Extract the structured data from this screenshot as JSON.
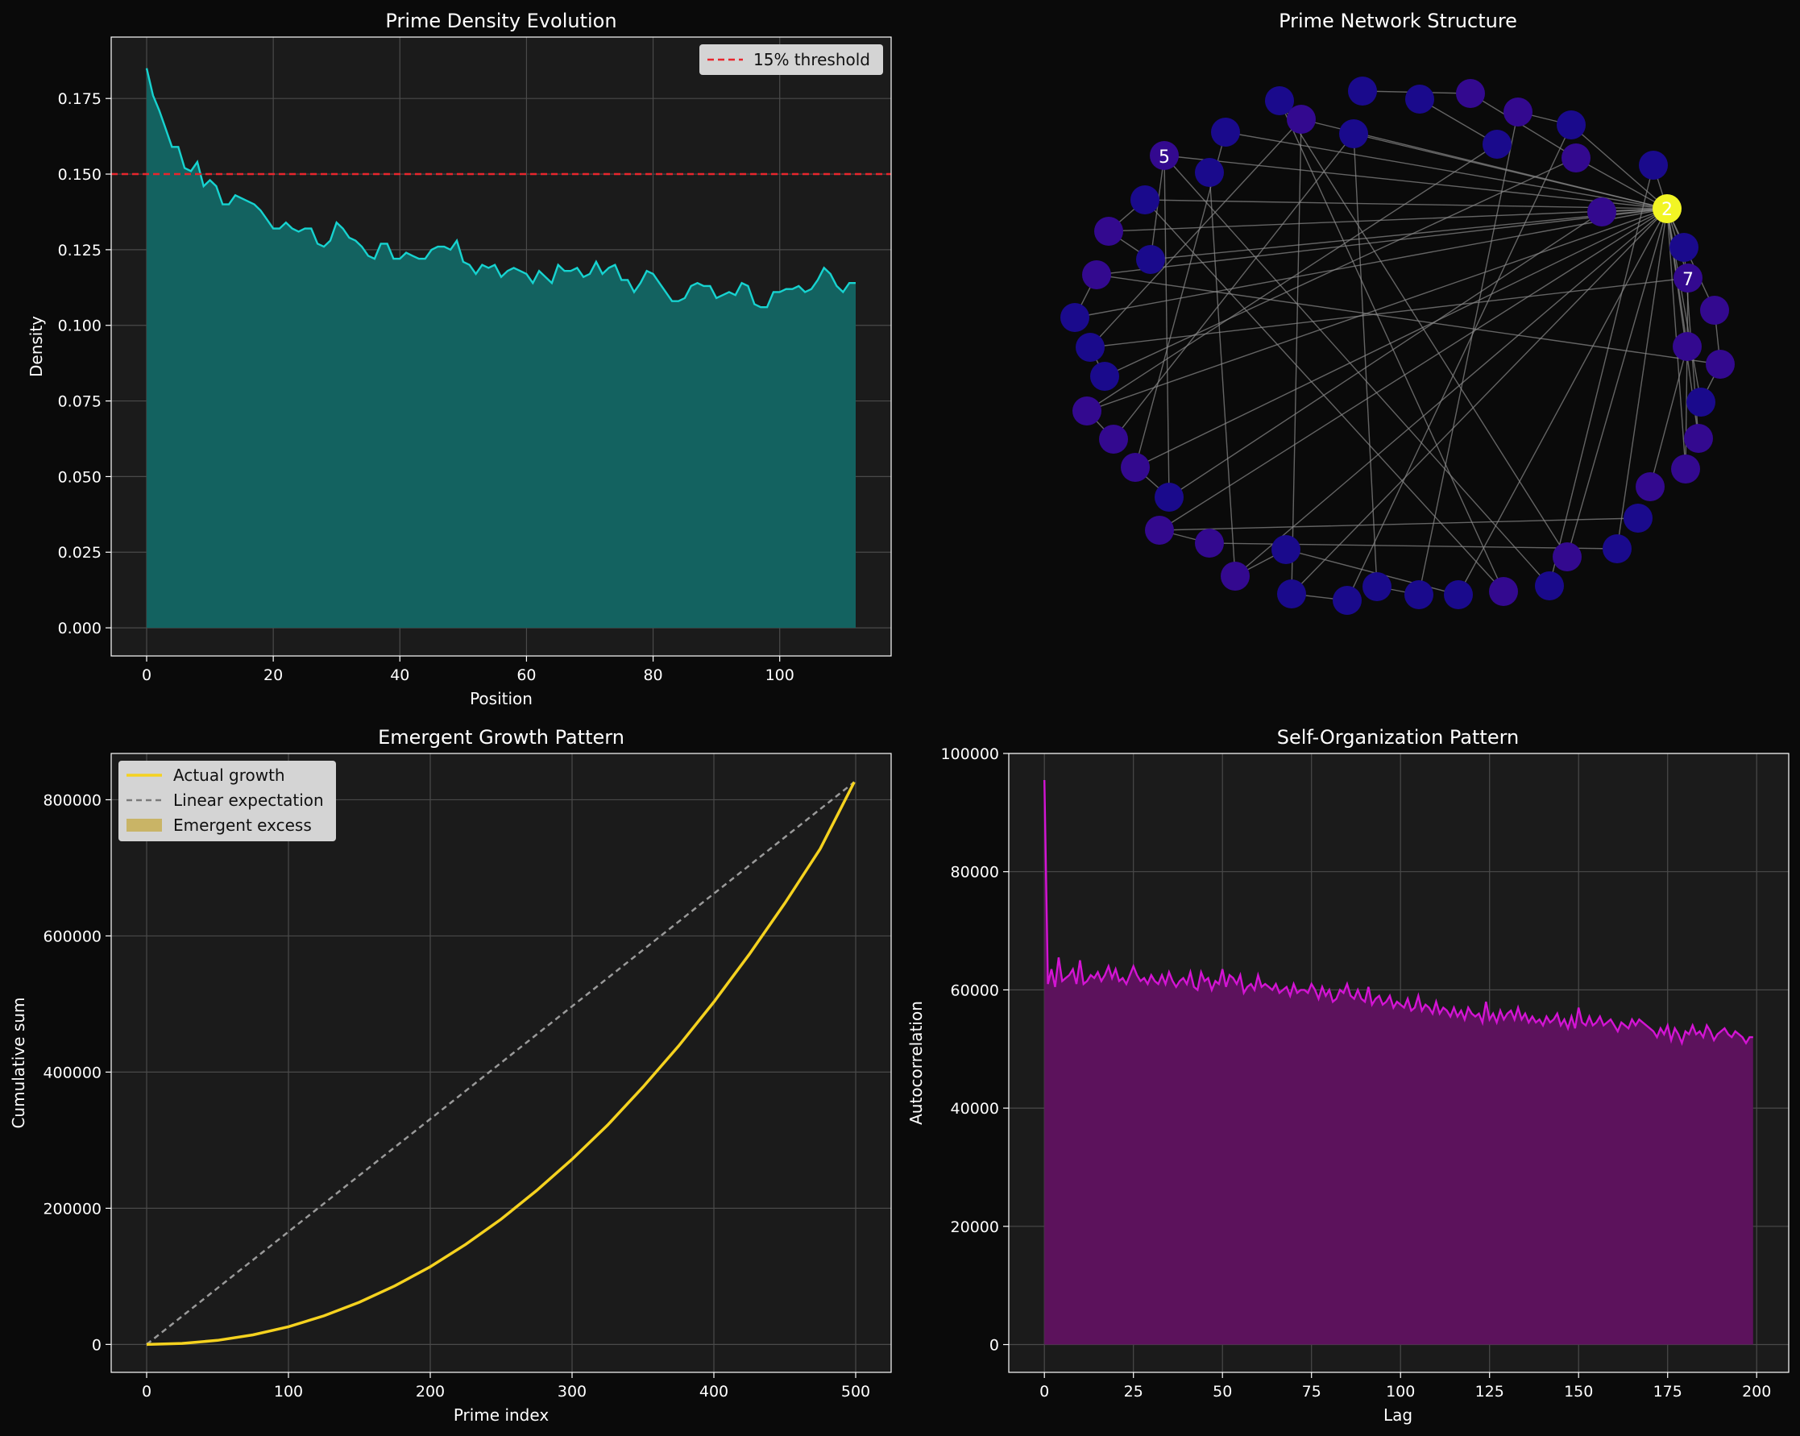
{
  "colors": {
    "figure_bg": "#0a0a0a",
    "axes_bg": "#1b1b1b",
    "text": "#ffffff",
    "grid": "#4a4a4a",
    "cyan": "#17d3d0",
    "cyan_fill": "#136260",
    "red": "#e8262d",
    "gold": "#f5d21f",
    "gold_fill": "#c9b466",
    "grey_line": "#9a9a9a",
    "magenta": "#d314d3",
    "magenta_fill": "#5c125c",
    "legend_bg": "#d4d4d4",
    "legend_text": "#111111",
    "node_blue": "#1a0a8c",
    "node_violet": "#33098f",
    "node_highlight": "#f2f524",
    "edge": "#8a8a8a"
  },
  "chart_data": [
    {
      "type": "area",
      "title": "Prime Density Evolution",
      "xlabel": "Position",
      "ylabel": "Density",
      "xlim": [
        -5.6,
        117.6
      ],
      "ylim": [
        -0.0093,
        0.1953
      ],
      "xticks": [
        0,
        20,
        40,
        60,
        80,
        100
      ],
      "yticks": [
        0.0,
        0.025,
        0.05,
        0.075,
        0.1,
        0.125,
        0.15,
        0.175
      ],
      "ytick_labels": [
        "0.000",
        "0.025",
        "0.050",
        "0.075",
        "0.100",
        "0.125",
        "0.150",
        "0.175"
      ],
      "grid": true,
      "legend": {
        "position": "top-right",
        "entries": [
          "15% threshold"
        ]
      },
      "threshold": 0.15,
      "series": [
        {
          "x": [
            0,
            1,
            2,
            3,
            4,
            5,
            6,
            7,
            8,
            9,
            10,
            11,
            12,
            13,
            14,
            15,
            16,
            17,
            18,
            19,
            20,
            21,
            22,
            23,
            24,
            25,
            26,
            27,
            28,
            29,
            30,
            31,
            32,
            33,
            34,
            35,
            36,
            37,
            38,
            39,
            40,
            41,
            42,
            43,
            44,
            45,
            46,
            47,
            48,
            49,
            50,
            51,
            52,
            53,
            54,
            55,
            56,
            57,
            58,
            59,
            60,
            61,
            62,
            63,
            64,
            65,
            66,
            67,
            68,
            69,
            70,
            71,
            72,
            73,
            74,
            75,
            76,
            77,
            78,
            79,
            80,
            81,
            82,
            83,
            84,
            85,
            86,
            87,
            88,
            89,
            90,
            91,
            92,
            93,
            94,
            95,
            96,
            97,
            98,
            99,
            100,
            101,
            102,
            103,
            104,
            105,
            106,
            107,
            108,
            109,
            110,
            111,
            112
          ],
          "y": [
            0.185,
            0.176,
            0.171,
            0.165,
            0.159,
            0.159,
            0.152,
            0.151,
            0.154,
            0.146,
            0.148,
            0.146,
            0.14,
            0.14,
            0.143,
            0.142,
            0.141,
            0.14,
            0.138,
            0.135,
            0.132,
            0.132,
            0.134,
            0.132,
            0.131,
            0.132,
            0.132,
            0.127,
            0.126,
            0.128,
            0.134,
            0.132,
            0.129,
            0.128,
            0.126,
            0.123,
            0.122,
            0.127,
            0.127,
            0.122,
            0.122,
            0.124,
            0.123,
            0.122,
            0.122,
            0.125,
            0.126,
            0.126,
            0.125,
            0.128,
            0.121,
            0.12,
            0.117,
            0.12,
            0.119,
            0.12,
            0.116,
            0.118,
            0.119,
            0.118,
            0.117,
            0.114,
            0.118,
            0.116,
            0.114,
            0.12,
            0.118,
            0.118,
            0.119,
            0.116,
            0.117,
            0.121,
            0.117,
            0.119,
            0.12,
            0.115,
            0.115,
            0.111,
            0.114,
            0.118,
            0.117,
            0.114,
            0.111,
            0.108,
            0.108,
            0.109,
            0.113,
            0.114,
            0.113,
            0.113,
            0.109,
            0.11,
            0.111,
            0.11,
            0.114,
            0.113,
            0.107,
            0.106,
            0.106,
            0.111,
            0.111,
            0.112,
            0.112,
            0.113,
            0.111,
            0.112,
            0.115,
            0.119,
            0.117,
            0.113,
            0.111,
            0.114,
            0.114
          ]
        }
      ]
    },
    {
      "type": "network",
      "title": "Prime Network Structure",
      "node_labels": [
        "5",
        "2",
        "7"
      ]
    },
    {
      "type": "line",
      "title": "Emergent Growth Pattern",
      "xlabel": "Prime index",
      "ylabel": "Cumulative sum",
      "xlim": [
        -25,
        525
      ],
      "ylim": [
        -41000,
        868000
      ],
      "xticks": [
        0,
        100,
        200,
        300,
        400,
        500
      ],
      "yticks": [
        0,
        200000,
        400000,
        600000,
        800000
      ],
      "grid": true,
      "legend": {
        "position": "top-left",
        "entries": [
          "Actual growth",
          "Linear expectation",
          "Emergent excess"
        ]
      },
      "series": [
        {
          "name": "Actual growth",
          "x": [
            0,
            25,
            50,
            75,
            100,
            125,
            150,
            175,
            200,
            225,
            250,
            275,
            300,
            325,
            350,
            375,
            400,
            425,
            450,
            475,
            499
          ],
          "y": [
            0,
            1500,
            6000,
            14000,
            26000,
            42000,
            62000,
            86000,
            114000,
            147000,
            184000,
            226000,
            272000,
            322000,
            378000,
            438000,
            503000,
            573000,
            648000,
            728000,
            826000
          ]
        },
        {
          "name": "Linear expectation",
          "x": [
            0,
            499
          ],
          "y": [
            0,
            826000
          ]
        }
      ]
    },
    {
      "type": "area",
      "title": "Self-Organization Pattern",
      "xlabel": "Lag",
      "ylabel": "Autocorrelation",
      "xlim": [
        -10,
        209
      ],
      "ylim": [
        -4700,
        100000
      ],
      "xticks": [
        0,
        25,
        50,
        75,
        100,
        125,
        150,
        175,
        200
      ],
      "yticks": [
        0,
        20000,
        40000,
        60000,
        80000,
        100000
      ],
      "grid": true,
      "series": [
        {
          "x_start": 0,
          "x_step": 1,
          "y": [
            95500,
            61000,
            63500,
            60500,
            65500,
            61500,
            62000,
            62500,
            63500,
            61000,
            65000,
            61000,
            61500,
            62500,
            62000,
            63000,
            61500,
            62500,
            64000,
            62000,
            63500,
            61500,
            62000,
            61000,
            62500,
            64000,
            62500,
            61500,
            62000,
            61000,
            62500,
            61500,
            61000,
            62500,
            61000,
            63000,
            61500,
            60500,
            61500,
            62000,
            61000,
            63000,
            60500,
            60000,
            63000,
            61500,
            62000,
            60000,
            61500,
            61000,
            63500,
            60500,
            62500,
            62000,
            61000,
            62500,
            59500,
            60500,
            61000,
            60000,
            62500,
            60500,
            61000,
            60500,
            60000,
            61000,
            59500,
            60000,
            60500,
            59000,
            61000,
            59500,
            60000,
            60000,
            59500,
            61000,
            60000,
            58500,
            60500,
            59000,
            60000,
            58000,
            58500,
            60000,
            59500,
            61000,
            59000,
            58500,
            60000,
            58500,
            58000,
            60500,
            57500,
            58500,
            59000,
            57500,
            58000,
            59000,
            57000,
            58000,
            57500,
            57000,
            58500,
            56500,
            57000,
            59000,
            56500,
            57500,
            57000,
            56000,
            58000,
            56000,
            57000,
            56500,
            55500,
            57000,
            55500,
            56500,
            55000,
            57000,
            56000,
            55500,
            56000,
            54500,
            58000,
            55000,
            56000,
            54500,
            56500,
            55000,
            56000,
            56500,
            55000,
            57000,
            55000,
            56000,
            54500,
            55500,
            54500,
            55000,
            54000,
            55500,
            54500,
            55000,
            56000,
            54000,
            55000,
            53500,
            55500,
            53500,
            57000,
            54500,
            54000,
            55500,
            54000,
            54500,
            55500,
            54000,
            54500,
            55000,
            54000,
            53000,
            54500,
            54000,
            53500,
            55000,
            54000,
            55000,
            54500,
            54000,
            53500,
            53000,
            52000,
            53500,
            52500,
            54000,
            51500,
            53500,
            52500,
            51000,
            53000,
            52500,
            54000,
            52500,
            53000,
            52000,
            54000,
            53000,
            51500,
            52500,
            53000,
            53500,
            52500,
            52000,
            53000,
            52500,
            52000,
            51000,
            52000,
            52000
          ]
        }
      ]
    }
  ]
}
